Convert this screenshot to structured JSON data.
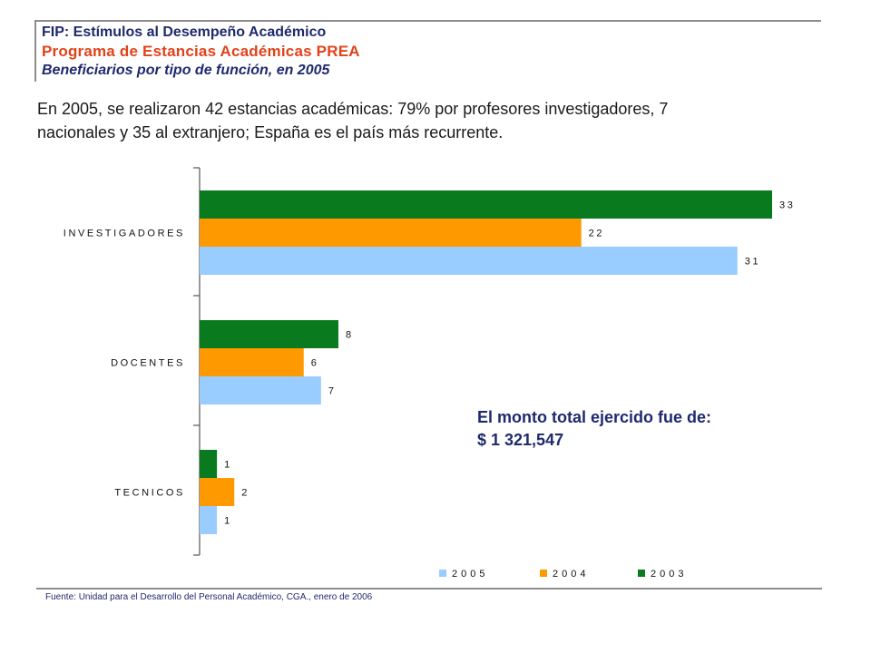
{
  "header": {
    "line1": "FIP: Estímulos al Desempeño Académico",
    "line2": "Programa de Estancias Académicas PREA",
    "line3": "Beneficiarios por tipo de función, en 2005"
  },
  "summary": {
    "line1": "En 2005, se realizaron 42 estancias académicas:  79% por profesores investigadores, 7",
    "line2": "nacionales y 35 al extranjero; España es el país más recurrente."
  },
  "monto": {
    "label": "El monto total ejercido fue de:",
    "value": "$ 1 321,547"
  },
  "source": "Fuente: Unidad para el Desarrollo del Personal Académico, CGA., enero de 2006",
  "chart_data": {
    "type": "bar",
    "orientation": "horizontal",
    "categories": [
      "INVESTIGADORES",
      "DOCENTES",
      "TECNICOS"
    ],
    "series": [
      {
        "name": "2003",
        "color": "#0a7a1e",
        "values": [
          33,
          8,
          1
        ]
      },
      {
        "name": "2004",
        "color": "#ff9900",
        "values": [
          22,
          6,
          2
        ]
      },
      {
        "name": "2005",
        "color": "#99ccff",
        "values": [
          31,
          7,
          1
        ]
      }
    ],
    "legend_order": [
      "2005",
      "2004",
      "2003"
    ],
    "legend_position": "bottom",
    "xlim": [
      0,
      33
    ],
    "grid": false,
    "data_labels": true
  }
}
